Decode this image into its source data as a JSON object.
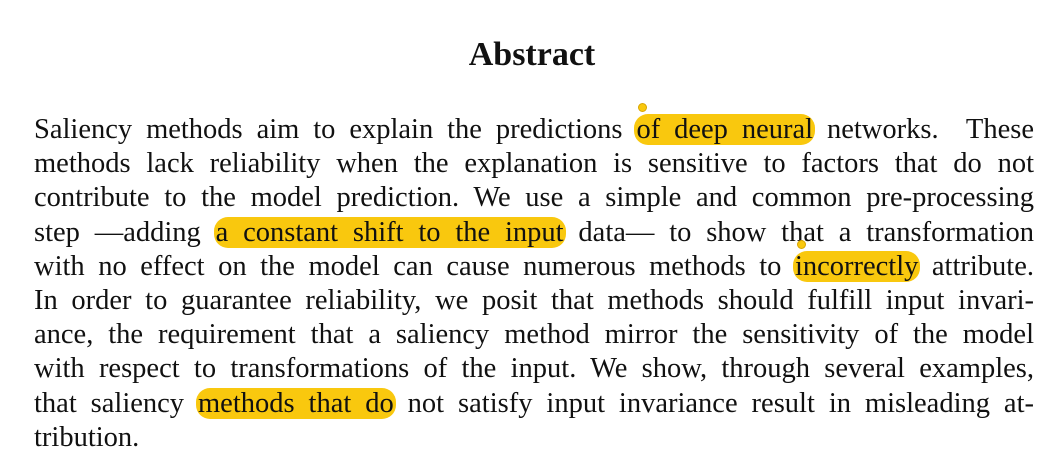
{
  "abstract": {
    "heading": "Abstract",
    "lines": [
      [
        {
          "text": "Saliency methods aim to explain the predictions "
        },
        {
          "text": "of deep neural",
          "highlight": true,
          "pin": true
        },
        {
          "text": " networks.  These"
        }
      ],
      [
        {
          "text": "methods lack reliability when the explanation is sensitive to factors that do not"
        }
      ],
      [
        {
          "text": "contribute to the model prediction. We use a simple and common pre-processing"
        }
      ],
      [
        {
          "text": "step —adding "
        },
        {
          "text": "a constant shift to the input",
          "highlight": true
        },
        {
          "text": " data— to show that a transformation"
        }
      ],
      [
        {
          "text": "with no effect on the model can cause numerous methods to "
        },
        {
          "text": "incorrectly",
          "highlight": true,
          "pin": true
        },
        {
          "text": " attribute."
        }
      ],
      [
        {
          "text": "In order to guarantee reliability, we posit that methods should fulfill input invari-"
        }
      ],
      [
        {
          "text": "ance, the requirement that a saliency method mirror the sensitivity of the model"
        }
      ],
      [
        {
          "text": "with respect to transformations of the input. We show, through several examples,"
        }
      ],
      [
        {
          "text": "that saliency "
        },
        {
          "text": "methods that do",
          "highlight": true
        },
        {
          "text": " not satisfy input invariance result in misleading at-"
        }
      ],
      [
        {
          "text": "tribution."
        }
      ]
    ]
  }
}
